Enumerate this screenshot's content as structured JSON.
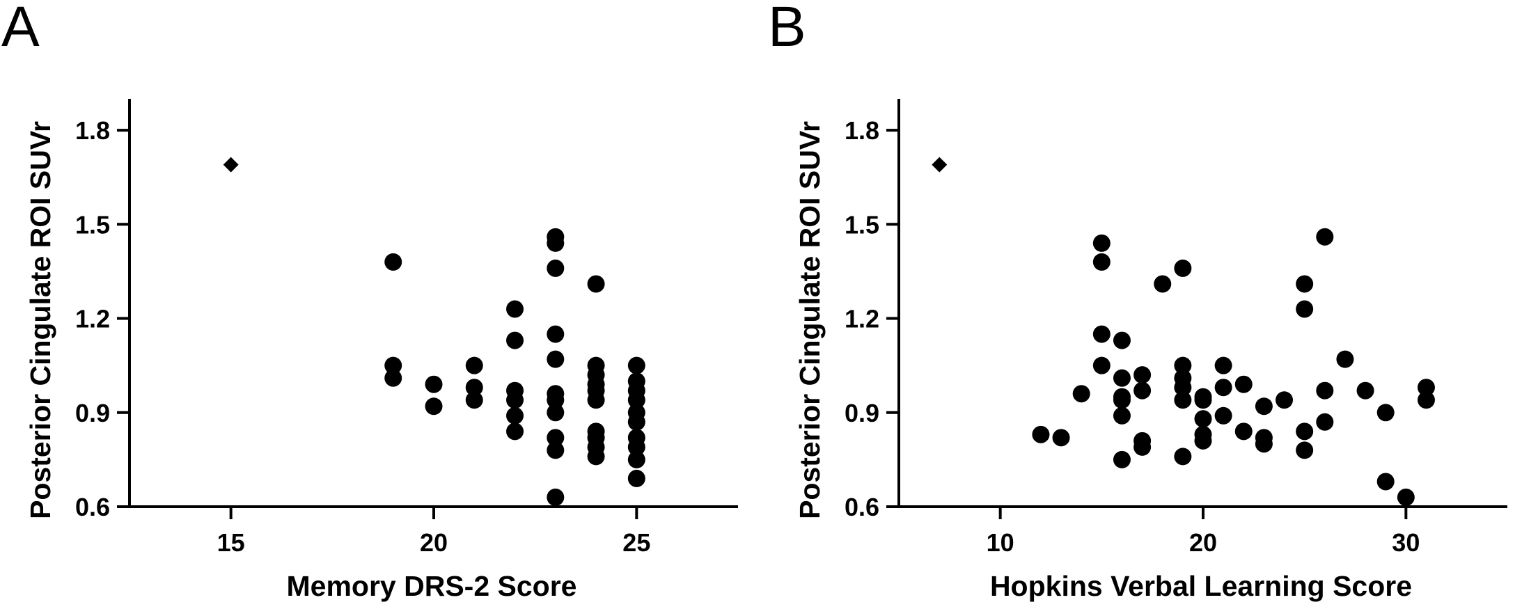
{
  "chart_data": [
    {
      "type": "scatter",
      "panel_label": "A",
      "xlabel": "Memory DRS-2 Score",
      "ylabel": "Posterior Cingulate ROI SUVr",
      "xlim": [
        12.5,
        27.5
      ],
      "ylim": [
        0.6,
        1.9
      ],
      "xticks": [
        "15",
        "20",
        "25"
      ],
      "yticks": [
        "0.6",
        "0.9",
        "1.2",
        "1.5",
        "1.8"
      ],
      "xtick_values": [
        15,
        20,
        25
      ],
      "ytick_values": [
        0.6,
        0.9,
        1.2,
        1.5,
        1.8
      ],
      "grid": false,
      "series": [
        {
          "marker": "circle",
          "color": "#000000",
          "points": [
            [
              19,
              1.38
            ],
            [
              19,
              1.05
            ],
            [
              19,
              1.01
            ],
            [
              20,
              0.99
            ],
            [
              20,
              0.92
            ],
            [
              21,
              1.05
            ],
            [
              21,
              0.98
            ],
            [
              21,
              0.94
            ],
            [
              22,
              1.23
            ],
            [
              22,
              1.13
            ],
            [
              22,
              0.97
            ],
            [
              22,
              0.94
            ],
            [
              22,
              0.89
            ],
            [
              22,
              0.84
            ],
            [
              23,
              1.46
            ],
            [
              23,
              1.44
            ],
            [
              23,
              1.36
            ],
            [
              23,
              1.15
            ],
            [
              23,
              1.07
            ],
            [
              23,
              0.96
            ],
            [
              23,
              0.94
            ],
            [
              23,
              0.9
            ],
            [
              23,
              0.82
            ],
            [
              23,
              0.78
            ],
            [
              23,
              0.63
            ],
            [
              24,
              1.31
            ],
            [
              24,
              1.05
            ],
            [
              24,
              1.02
            ],
            [
              24,
              0.99
            ],
            [
              24,
              0.97
            ],
            [
              24,
              0.94
            ],
            [
              24,
              0.84
            ],
            [
              24,
              0.82
            ],
            [
              24,
              0.79
            ],
            [
              24,
              0.76
            ],
            [
              25,
              1.05
            ],
            [
              25,
              1.0
            ],
            [
              25,
              0.97
            ],
            [
              25,
              0.94
            ],
            [
              25,
              0.9
            ],
            [
              25,
              0.87
            ],
            [
              25,
              0.82
            ],
            [
              25,
              0.79
            ],
            [
              25,
              0.75
            ],
            [
              25,
              0.69
            ]
          ]
        },
        {
          "marker": "diamond",
          "color": "#000000",
          "points": [
            [
              15,
              1.69
            ]
          ]
        }
      ]
    },
    {
      "type": "scatter",
      "panel_label": "B",
      "xlabel": "Hopkins Verbal Learning Score",
      "ylabel": "Posterior Cingulate ROI SUVr",
      "xlim": [
        5,
        35
      ],
      "ylim": [
        0.6,
        1.9
      ],
      "xticks": [
        "10",
        "20",
        "30"
      ],
      "yticks": [
        "0.6",
        "0.9",
        "1.2",
        "1.5",
        "1.8"
      ],
      "xtick_values": [
        10,
        20,
        30
      ],
      "ytick_values": [
        0.6,
        0.9,
        1.2,
        1.5,
        1.8
      ],
      "grid": false,
      "series": [
        {
          "marker": "circle",
          "color": "#000000",
          "points": [
            [
              12,
              0.83
            ],
            [
              13,
              0.82
            ],
            [
              14,
              0.96
            ],
            [
              15,
              1.44
            ],
            [
              15,
              1.38
            ],
            [
              15,
              1.15
            ],
            [
              15,
              1.05
            ],
            [
              16,
              1.13
            ],
            [
              16,
              1.01
            ],
            [
              16,
              0.95
            ],
            [
              16,
              0.94
            ],
            [
              16,
              0.89
            ],
            [
              16,
              0.75
            ],
            [
              17,
              1.02
            ],
            [
              17,
              0.97
            ],
            [
              17,
              0.81
            ],
            [
              17,
              0.79
            ],
            [
              18,
              1.31
            ],
            [
              19,
              1.36
            ],
            [
              19,
              1.05
            ],
            [
              19,
              1.01
            ],
            [
              19,
              0.98
            ],
            [
              19,
              0.94
            ],
            [
              19,
              0.76
            ],
            [
              20,
              0.95
            ],
            [
              20,
              0.94
            ],
            [
              20,
              0.88
            ],
            [
              20,
              0.83
            ],
            [
              20,
              0.81
            ],
            [
              21,
              1.05
            ],
            [
              21,
              0.98
            ],
            [
              21,
              0.89
            ],
            [
              22,
              0.99
            ],
            [
              22,
              0.84
            ],
            [
              23,
              0.92
            ],
            [
              23,
              0.82
            ],
            [
              23,
              0.8
            ],
            [
              24,
              0.94
            ],
            [
              25,
              1.31
            ],
            [
              25,
              1.23
            ],
            [
              25,
              0.84
            ],
            [
              25,
              0.78
            ],
            [
              26,
              1.46
            ],
            [
              26,
              0.97
            ],
            [
              26,
              0.87
            ],
            [
              27,
              1.07
            ],
            [
              28,
              0.97
            ],
            [
              29,
              0.9
            ],
            [
              29,
              0.68
            ],
            [
              30,
              0.63
            ],
            [
              31,
              0.98
            ],
            [
              31,
              0.94
            ]
          ]
        },
        {
          "marker": "diamond",
          "color": "#000000",
          "points": [
            [
              7,
              1.69
            ]
          ]
        }
      ]
    }
  ]
}
